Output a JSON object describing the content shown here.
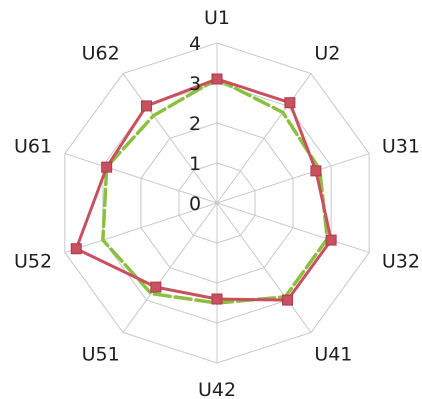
{
  "chart_data": {
    "type": "radar",
    "categories": [
      "U1",
      "U2",
      "U31",
      "U32",
      "U41",
      "U42",
      "U51",
      "U52",
      "U61",
      "U62"
    ],
    "rlim": [
      0,
      4
    ],
    "ticks": [
      "0",
      "1",
      "2",
      "3",
      "4"
    ],
    "grid": true,
    "legend": "none",
    "series": [
      {
        "color": "#c8505f",
        "marker": "square",
        "line_style": "solid",
        "values": [
          3.1,
          3.1,
          2.6,
          3.0,
          3.0,
          2.4,
          2.6,
          3.7,
          2.9,
          3.0
        ]
      },
      {
        "color": "#8dbf3f",
        "marker": "none",
        "line_style": "dashed",
        "values": [
          3.1,
          2.8,
          2.7,
          2.9,
          2.9,
          2.5,
          2.8,
          3.0,
          2.9,
          2.7
        ]
      }
    ]
  }
}
